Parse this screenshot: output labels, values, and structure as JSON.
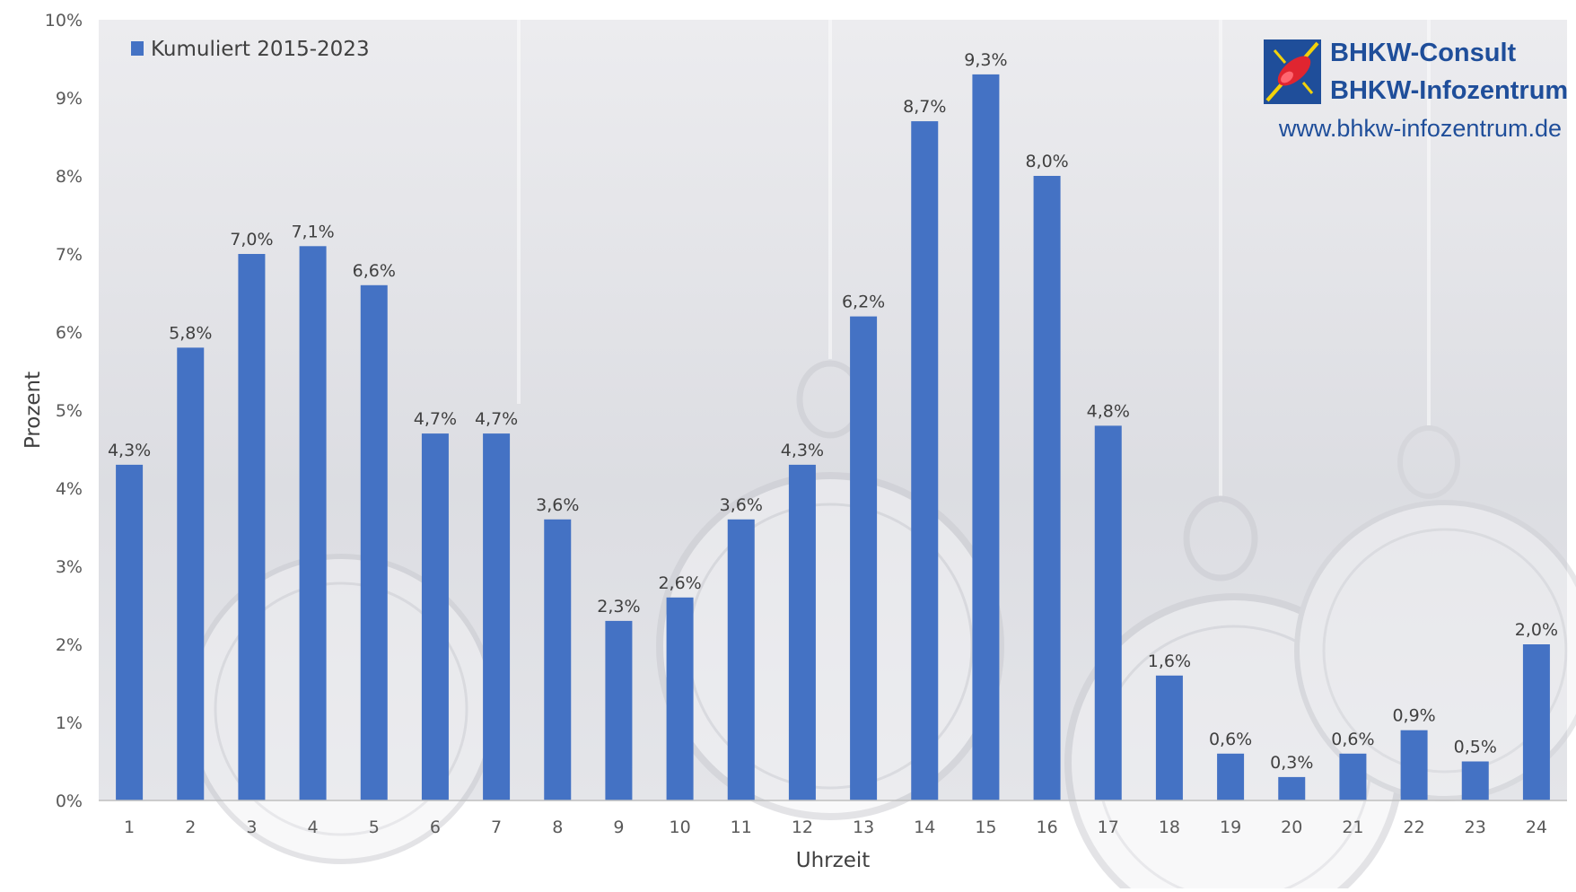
{
  "chart_data": {
    "type": "bar",
    "categories": [
      "1",
      "2",
      "3",
      "4",
      "5",
      "6",
      "7",
      "8",
      "9",
      "10",
      "11",
      "12",
      "13",
      "14",
      "15",
      "16",
      "17",
      "18",
      "19",
      "20",
      "21",
      "22",
      "23",
      "24"
    ],
    "series": [
      {
        "name": "Kumuliert 2015-2023",
        "values": [
          4.3,
          5.8,
          7.0,
          7.1,
          6.6,
          4.7,
          4.7,
          3.6,
          2.3,
          2.6,
          3.6,
          4.3,
          6.2,
          8.7,
          9.3,
          8.0,
          4.8,
          1.6,
          0.6,
          0.3,
          0.6,
          0.9,
          0.5,
          2.0
        ],
        "data_labels": [
          "4,3%",
          "5,8%",
          "7,0%",
          "7,1%",
          "6,6%",
          "4,7%",
          "4,7%",
          "3,6%",
          "2,3%",
          "2,6%",
          "3,6%",
          "4,3%",
          "6,2%",
          "8,7%",
          "9,3%",
          "8,0%",
          "4,8%",
          "1,6%",
          "0,6%",
          "0,3%",
          "0,6%",
          "0,9%",
          "0,5%",
          "2,0%"
        ],
        "color": "#4472c4"
      }
    ],
    "xlabel": "Uhrzeit",
    "ylabel": "Prozent",
    "ylim": [
      0,
      10
    ],
    "y_ticks": [
      "0%",
      "1%",
      "2%",
      "3%",
      "4%",
      "5%",
      "6%",
      "7%",
      "8%",
      "9%",
      "10%"
    ],
    "grid": false,
    "legend_position": "top-left"
  },
  "branding": {
    "line1": "BHKW-Consult",
    "line2": "BHKW-Infozentrum",
    "url": "www.bhkw-infozentrum.de",
    "logo_icon": "bhkw-logo-icon",
    "brand_color": "#1f4e9a"
  },
  "background": {
    "icon": "pocket-watch-icon"
  }
}
